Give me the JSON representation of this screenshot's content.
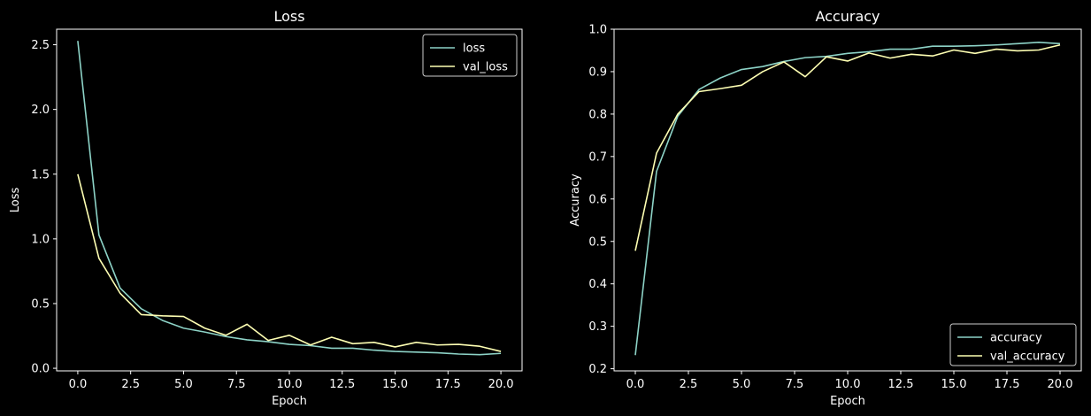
{
  "colors": {
    "background": "#000000",
    "axes": "#ffffff",
    "text": "#ffffff",
    "series_1": "#8dd3c7",
    "series_2": "#feffb3"
  },
  "chart_data": [
    {
      "type": "line",
      "title": "Loss",
      "xlabel": "Epoch",
      "ylabel": "Loss",
      "xlim": [
        -1,
        21
      ],
      "ylim": [
        -0.02,
        2.62
      ],
      "xticks": [
        0,
        2.5,
        5,
        7.5,
        10,
        12.5,
        15,
        17.5,
        20
      ],
      "xtick_labels": [
        "0.0",
        "2.5",
        "5.0",
        "7.5",
        "10.0",
        "12.5",
        "15.0",
        "17.5",
        "20.0"
      ],
      "yticks": [
        0,
        0.5,
        1.0,
        1.5,
        2.0,
        2.5
      ],
      "ytick_labels": [
        "0.0",
        "0.5",
        "1.0",
        "1.5",
        "2.0",
        "2.5"
      ],
      "legend_position": "top-right",
      "grid": false,
      "x": [
        0,
        1,
        2,
        3,
        4,
        5,
        6,
        7,
        8,
        9,
        10,
        11,
        12,
        13,
        14,
        15,
        16,
        17,
        18,
        19,
        20
      ],
      "series": [
        {
          "name": "loss",
          "color": "#8dd3c7",
          "values": [
            2.53,
            1.03,
            0.62,
            0.46,
            0.37,
            0.31,
            0.28,
            0.245,
            0.22,
            0.205,
            0.185,
            0.175,
            0.155,
            0.155,
            0.14,
            0.13,
            0.125,
            0.12,
            0.11,
            0.105,
            0.115
          ]
        },
        {
          "name": "val_loss",
          "color": "#feffb3",
          "values": [
            1.5,
            0.85,
            0.58,
            0.415,
            0.405,
            0.4,
            0.31,
            0.255,
            0.34,
            0.215,
            0.255,
            0.18,
            0.24,
            0.19,
            0.2,
            0.165,
            0.2,
            0.18,
            0.185,
            0.17,
            0.13
          ]
        }
      ]
    },
    {
      "type": "line",
      "title": "Accuracy",
      "xlabel": "Epoch",
      "ylabel": "Accuracy",
      "xlim": [
        -1,
        21
      ],
      "ylim": [
        0.195,
        1.0
      ],
      "xticks": [
        0,
        2.5,
        5,
        7.5,
        10,
        12.5,
        15,
        17.5,
        20
      ],
      "xtick_labels": [
        "0.0",
        "2.5",
        "5.0",
        "7.5",
        "10.0",
        "12.5",
        "15.0",
        "17.5",
        "20.0"
      ],
      "yticks": [
        0.2,
        0.3,
        0.4,
        0.5,
        0.6,
        0.7,
        0.8,
        0.9,
        1.0
      ],
      "ytick_labels": [
        "0.2",
        "0.3",
        "0.4",
        "0.5",
        "0.6",
        "0.7",
        "0.8",
        "0.9",
        "1.0"
      ],
      "legend_position": "bottom-right",
      "grid": false,
      "x": [
        0,
        1,
        2,
        3,
        4,
        5,
        6,
        7,
        8,
        9,
        10,
        11,
        12,
        13,
        14,
        15,
        16,
        17,
        18,
        19,
        20
      ],
      "series": [
        {
          "name": "accuracy",
          "color": "#8dd3c7",
          "values": [
            0.232,
            0.665,
            0.795,
            0.858,
            0.885,
            0.905,
            0.912,
            0.924,
            0.933,
            0.936,
            0.943,
            0.947,
            0.953,
            0.953,
            0.96,
            0.96,
            0.961,
            0.963,
            0.966,
            0.969,
            0.966
          ]
        },
        {
          "name": "val_accuracy",
          "color": "#feffb3",
          "values": [
            0.478,
            0.708,
            0.8,
            0.853,
            0.86,
            0.868,
            0.9,
            0.923,
            0.888,
            0.935,
            0.925,
            0.944,
            0.932,
            0.941,
            0.937,
            0.951,
            0.943,
            0.953,
            0.949,
            0.951,
            0.963
          ]
        }
      ]
    }
  ]
}
